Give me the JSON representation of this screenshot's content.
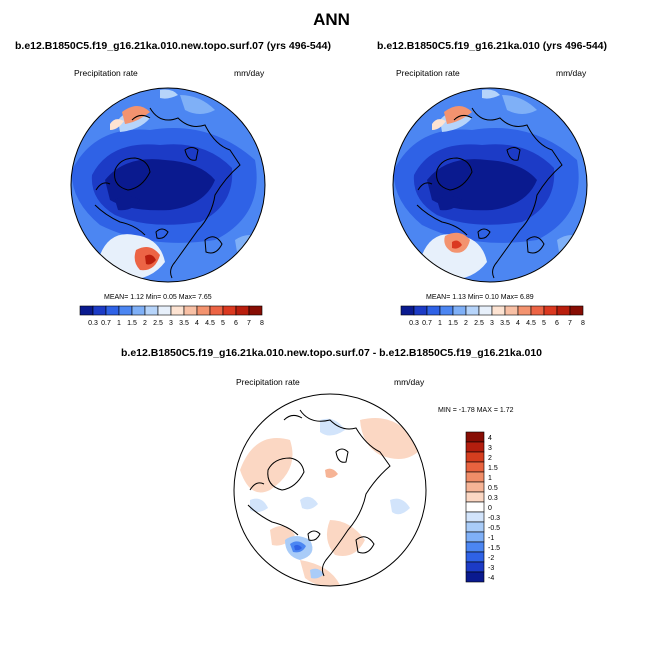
{
  "title": "ANN",
  "colors": {
    "h_scale": [
      "#0a1a8f",
      "#1c3bc6",
      "#2f62e6",
      "#4c86f2",
      "#7fb0f7",
      "#b6d4fa",
      "#e7f0fb",
      "#fde3d2",
      "#f8c0a5",
      "#f3936f",
      "#ec6445",
      "#db3920",
      "#b91e0d",
      "#870d04"
    ],
    "d_scale": [
      "#0a1a8f",
      "#1c3bc6",
      "#2f62e6",
      "#4c86f2",
      "#7fb0f7",
      "#a9ccf8",
      "#d2e4fb",
      "#ffffff",
      "#fbd7c3",
      "#f6b496",
      "#f08d68",
      "#e8633f",
      "#d53e1f",
      "#b31e0e",
      "#870d04"
    ],
    "coast": "#000000"
  },
  "panels": [
    {
      "title": "b.e12.B1850C5.f19_g16.21ka.010.new.topo.surf.07 (yrs 496-544)",
      "variable": "Precipitation rate",
      "units": "mm/day",
      "stats": {
        "mean_label": "MEAN=",
        "mean": "1.12",
        "min_label": "Min=",
        "min": "0.05",
        "max_label": "Max=",
        "max": "7.65"
      }
    },
    {
      "title": "b.e12.B1850C5.f19_g16.21ka.010 (yrs 496-544)",
      "variable": "Precipitation rate",
      "units": "mm/day",
      "stats": {
        "mean_label": "MEAN=",
        "mean": "1.13",
        "min_label": "Min=",
        "min": "0.10",
        "max_label": "Max=",
        "max": "6.89"
      }
    }
  ],
  "colorbar_ticks": [
    "0.3",
    "0.7",
    "1",
    "1.5",
    "2",
    "2.5",
    "3",
    "3.5",
    "4",
    "4.5",
    "5",
    "6",
    "7",
    "8"
  ],
  "diff": {
    "title": "b.e12.B1850C5.f19_g16.21ka.010.new.topo.surf.07 - b.e12.B1850C5.f19_g16.21ka.010",
    "variable": "Precipitation rate",
    "units": "mm/day",
    "minmax_label": "MIN =  -1.78 MAX =   1.72",
    "ticks": [
      "4",
      "3",
      "2",
      "1.5",
      "1",
      "0.5",
      "0.3",
      "0",
      "-0.3",
      "-0.5",
      "-1",
      "-1.5",
      "-2",
      "-3",
      "-4"
    ]
  },
  "chart_data": [
    {
      "type": "heatmap",
      "title": "b.e12.B1850C5.f19_g16.21ka.010.new.topo.surf.07 (yrs 496-544)",
      "variable": "Precipitation rate",
      "units": "mm/day",
      "projection": "north polar stereographic",
      "colorbar": [
        "0.3",
        "0.7",
        "1",
        "1.5",
        "2",
        "2.5",
        "3",
        "3.5",
        "4",
        "4.5",
        "5",
        "6",
        "7",
        "8"
      ],
      "mean": 1.12,
      "min": 0.05,
      "max": 7.65
    },
    {
      "type": "heatmap",
      "title": "b.e12.B1850C5.f19_g16.21ka.010 (yrs 496-544)",
      "variable": "Precipitation rate",
      "units": "mm/day",
      "projection": "north polar stereographic",
      "colorbar": [
        "0.3",
        "0.7",
        "1",
        "1.5",
        "2",
        "2.5",
        "3",
        "3.5",
        "4",
        "4.5",
        "5",
        "6",
        "7",
        "8"
      ],
      "mean": 1.13,
      "min": 0.1,
      "max": 6.89
    },
    {
      "type": "heatmap",
      "title": "b.e12.B1850C5.f19_g16.21ka.010.new.topo.surf.07 - b.e12.B1850C5.f19_g16.21ka.010",
      "variable": "Precipitation rate",
      "units": "mm/day",
      "projection": "north polar stereographic",
      "colorbar": [
        "4",
        "3",
        "2",
        "1.5",
        "1",
        "0.5",
        "0.3",
        "0",
        "-0.3",
        "-0.5",
        "-1",
        "-1.5",
        "-2",
        "-3",
        "-4"
      ],
      "min": -1.78,
      "max": 1.72
    }
  ]
}
